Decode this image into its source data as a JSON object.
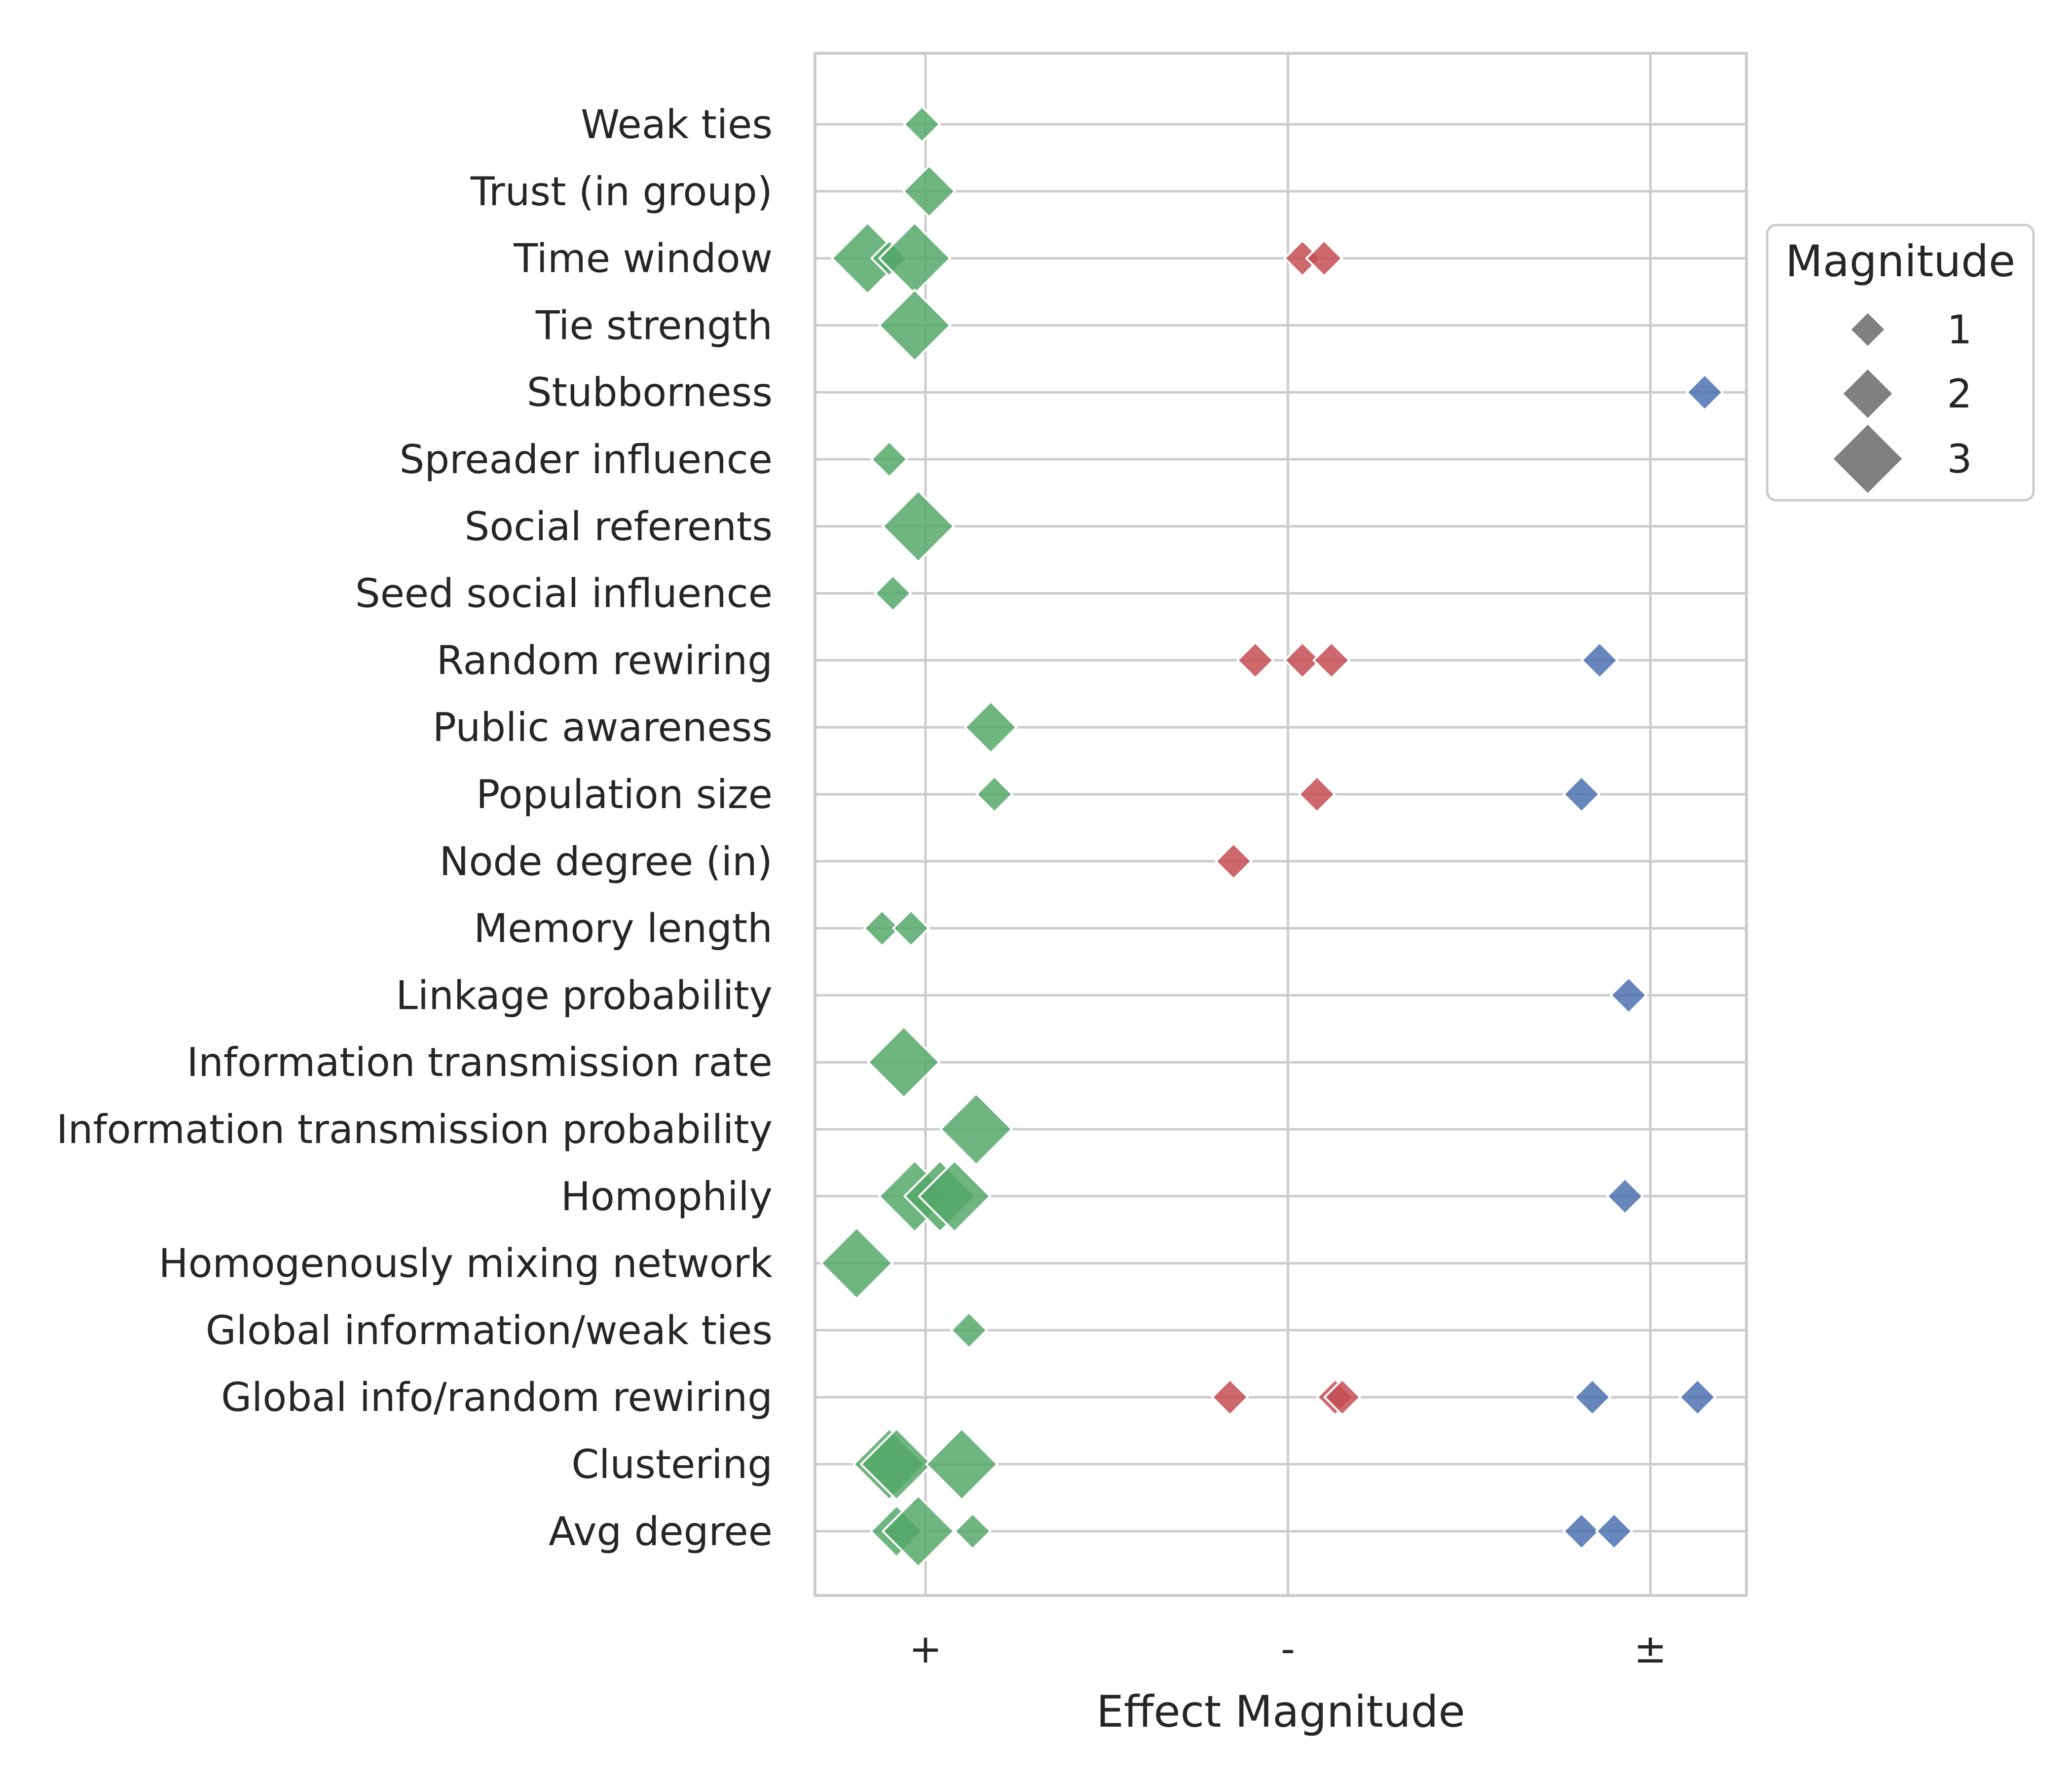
{
  "chart_data": {
    "type": "scatter",
    "xlabel": "Effect Magnitude",
    "x_categories": [
      "+",
      "-",
      "±"
    ],
    "categories": [
      "Weak ties",
      "Trust (in group)",
      "Time window",
      "Tie strength",
      "Stubborness",
      "Spreader influence",
      "Social referents",
      "Seed social influence",
      "Random rewiring",
      "Public awareness",
      "Population size",
      "Node degree (in)",
      "Memory length",
      "Linkage probability",
      "Information transmission rate",
      "Information transmission probability",
      "Homophily",
      "Homogenously mixing network",
      "Global information/weak ties",
      "Global info/random rewiring",
      "Clustering",
      "Avg degree"
    ],
    "grid": true,
    "legend": {
      "title": "Magnitude",
      "placement": "outside right, upper",
      "entries": [
        {
          "label": "1",
          "magnitude": 1
        },
        {
          "label": "2",
          "magnitude": 2
        },
        {
          "label": "3",
          "magnitude": 3
        }
      ],
      "marker_color": "#808080"
    },
    "colors": {
      "+": "#55a868",
      "-": "#c44e52",
      "±": "#4c72b0"
    },
    "marker": "diamond",
    "points": [
      {
        "y": "Weak ties",
        "effect": "+",
        "x": -0.01,
        "magnitude": 1
      },
      {
        "y": "Trust (in group)",
        "effect": "+",
        "x": 0.01,
        "magnitude": 2
      },
      {
        "y": "Time window",
        "effect": "+",
        "x": -0.16,
        "magnitude": 3
      },
      {
        "y": "Time window",
        "effect": "+",
        "x": -0.1,
        "magnitude": 1
      },
      {
        "y": "Time window",
        "effect": "+",
        "x": -0.03,
        "magnitude": 3
      },
      {
        "y": "Time window",
        "effect": "-",
        "x": 1.04,
        "magnitude": 1
      },
      {
        "y": "Time window",
        "effect": "-",
        "x": 1.1,
        "magnitude": 1
      },
      {
        "y": "Tie strength",
        "effect": "+",
        "x": -0.03,
        "magnitude": 3
      },
      {
        "y": "Stubborness",
        "effect": "±",
        "x": 2.15,
        "magnitude": 1
      },
      {
        "y": "Spreader influence",
        "effect": "+",
        "x": -0.1,
        "magnitude": 1
      },
      {
        "y": "Social referents",
        "effect": "+",
        "x": -0.02,
        "magnitude": 3
      },
      {
        "y": "Seed social influence",
        "effect": "+",
        "x": -0.09,
        "magnitude": 1
      },
      {
        "y": "Random rewiring",
        "effect": "-",
        "x": 0.91,
        "magnitude": 1
      },
      {
        "y": "Random rewiring",
        "effect": "-",
        "x": 1.04,
        "magnitude": 1
      },
      {
        "y": "Random rewiring",
        "effect": "-",
        "x": 1.12,
        "magnitude": 1
      },
      {
        "y": "Random rewiring",
        "effect": "±",
        "x": 1.86,
        "magnitude": 1
      },
      {
        "y": "Public awareness",
        "effect": "+",
        "x": 0.18,
        "magnitude": 2
      },
      {
        "y": "Population size",
        "effect": "+",
        "x": 0.19,
        "magnitude": 1
      },
      {
        "y": "Population size",
        "effect": "-",
        "x": 1.08,
        "magnitude": 1
      },
      {
        "y": "Population size",
        "effect": "±",
        "x": 1.81,
        "magnitude": 1
      },
      {
        "y": "Node degree (in)",
        "effect": "-",
        "x": 0.85,
        "magnitude": 1
      },
      {
        "y": "Memory length",
        "effect": "+",
        "x": -0.12,
        "magnitude": 1
      },
      {
        "y": "Memory length",
        "effect": "+",
        "x": -0.04,
        "magnitude": 1
      },
      {
        "y": "Linkage probability",
        "effect": "±",
        "x": 1.94,
        "magnitude": 1
      },
      {
        "y": "Information transmission rate",
        "effect": "+",
        "x": -0.06,
        "magnitude": 3
      },
      {
        "y": "Information transmission probability",
        "effect": "+",
        "x": 0.14,
        "magnitude": 3
      },
      {
        "y": "Homophily",
        "effect": "+",
        "x": -0.03,
        "magnitude": 3
      },
      {
        "y": "Homophily",
        "effect": "+",
        "x": 0.04,
        "magnitude": 3
      },
      {
        "y": "Homophily",
        "effect": "+",
        "x": 0.08,
        "magnitude": 3
      },
      {
        "y": "Homophily",
        "effect": "±",
        "x": 1.93,
        "magnitude": 1
      },
      {
        "y": "Homogenously mixing network",
        "effect": "+",
        "x": -0.19,
        "magnitude": 3
      },
      {
        "y": "Global information/weak ties",
        "effect": "+",
        "x": 0.12,
        "magnitude": 1
      },
      {
        "y": "Global info/random rewiring",
        "effect": "-",
        "x": 0.84,
        "magnitude": 1
      },
      {
        "y": "Global info/random rewiring",
        "effect": "-",
        "x": 1.13,
        "magnitude": 1
      },
      {
        "y": "Global info/random rewiring",
        "effect": "-",
        "x": 1.15,
        "magnitude": 1
      },
      {
        "y": "Global info/random rewiring",
        "effect": "±",
        "x": 1.84,
        "magnitude": 1
      },
      {
        "y": "Global info/random rewiring",
        "effect": "±",
        "x": 2.13,
        "magnitude": 1
      },
      {
        "y": "Clustering",
        "effect": "+",
        "x": -0.1,
        "magnitude": 3
      },
      {
        "y": "Clustering",
        "effect": "+",
        "x": -0.08,
        "magnitude": 3
      },
      {
        "y": "Clustering",
        "effect": "+",
        "x": 0.1,
        "magnitude": 3
      },
      {
        "y": "Avg degree",
        "effect": "+",
        "x": -0.08,
        "magnitude": 2
      },
      {
        "y": "Avg degree",
        "effect": "+",
        "x": -0.02,
        "magnitude": 3
      },
      {
        "y": "Avg degree",
        "effect": "+",
        "x": 0.13,
        "magnitude": 1
      },
      {
        "y": "Avg degree",
        "effect": "±",
        "x": 1.81,
        "magnitude": 1
      },
      {
        "y": "Avg degree",
        "effect": "±",
        "x": 1.9,
        "magnitude": 1
      }
    ]
  }
}
